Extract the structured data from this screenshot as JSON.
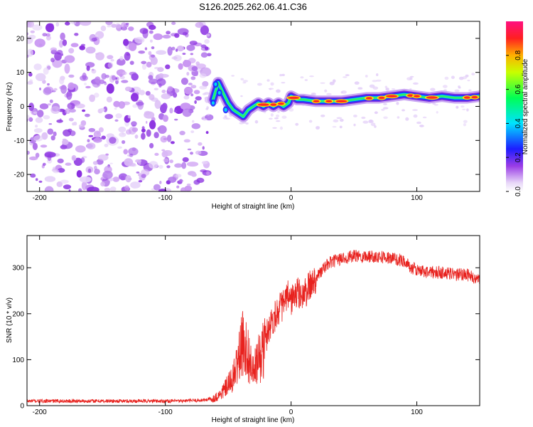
{
  "title": "S126.2025.262.06.41.C36",
  "chart_data": [
    {
      "type": "heatmap",
      "title": "S126.2025.262.06.41.C36",
      "xlabel": "Height of straight line (km)",
      "ylabel": "Frequency (Hz)",
      "xlim": [
        -210,
        150
      ],
      "ylim": [
        -25,
        25
      ],
      "xticks": [
        -200,
        -100,
        0,
        100
      ],
      "yticks": [
        -20,
        -10,
        0,
        10,
        20
      ],
      "noise_region_x": [
        -210,
        -65
      ],
      "signal_ridge": {
        "x": [
          -62,
          -58,
          -54,
          -50,
          -46,
          -42,
          -38,
          -34,
          -30,
          -26,
          -22,
          -18,
          -14,
          -10,
          -6,
          -2,
          0,
          5,
          10,
          20,
          30,
          40,
          50,
          60,
          70,
          80,
          90,
          100,
          110,
          120,
          130,
          140,
          150
        ],
        "freq_hz": [
          2,
          7,
          4,
          1,
          -1,
          -2,
          -3,
          -1,
          0,
          1,
          0,
          1,
          0,
          1,
          0,
          1,
          3,
          2,
          2,
          1.5,
          1.5,
          1.5,
          2,
          2.5,
          2.5,
          3,
          3.5,
          3,
          2.5,
          3,
          2.5,
          2.5,
          3
        ]
      },
      "colorbar": {
        "label": "Normalized spectral amplitude",
        "range": [
          0,
          1
        ],
        "ticks": [
          "0.0",
          "0.2",
          "0.4",
          "0.6",
          "0.8"
        ]
      }
    },
    {
      "type": "line",
      "title": "",
      "xlabel": "Height of straight line (km)",
      "ylabel": "SNR (10 * v/v)",
      "xlim": [
        -210,
        150
      ],
      "ylim": [
        0,
        370
      ],
      "xticks": [
        -200,
        -100,
        0,
        100
      ],
      "yticks": [
        0,
        100,
        200,
        300
      ],
      "series": [
        {
          "name": "SNR",
          "color": "#e8221e",
          "x": [
            -210,
            -190,
            -170,
            -150,
            -130,
            -110,
            -90,
            -70,
            -62,
            -56,
            -50,
            -46,
            -42,
            -38,
            -34,
            -30,
            -26,
            -22,
            -18,
            -14,
            -10,
            -6,
            -2,
            0,
            5,
            10,
            20,
            30,
            40,
            50,
            60,
            70,
            80,
            90,
            95,
            100,
            110,
            120,
            130,
            140,
            150
          ],
          "values": [
            10,
            10,
            10,
            10,
            10,
            10,
            10,
            12,
            15,
            25,
            45,
            60,
            100,
            140,
            110,
            70,
            100,
            120,
            170,
            190,
            210,
            220,
            240,
            230,
            245,
            240,
            280,
            310,
            320,
            325,
            325,
            325,
            320,
            315,
            300,
            295,
            290,
            290,
            285,
            285,
            270
          ]
        }
      ]
    }
  ]
}
